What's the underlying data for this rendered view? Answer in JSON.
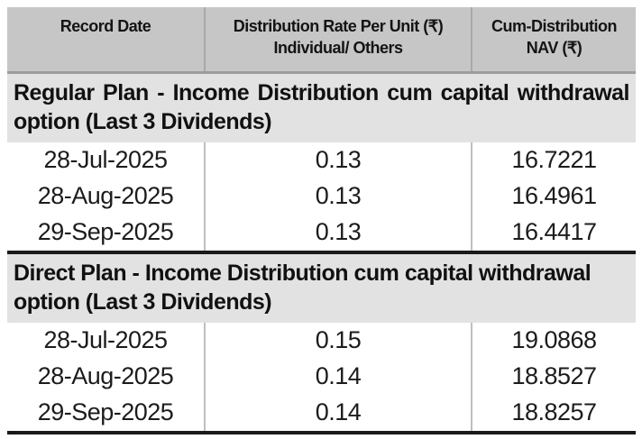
{
  "colors": {
    "header_bg": "#c6c6c6",
    "section_bg": "#e2e2e2",
    "heavy_rule": "#1a1a1a",
    "header_rule": "#9d9d9d",
    "column_divider": "#bfbfbf",
    "text": "#141414",
    "page_bg": "#ffffff"
  },
  "table": {
    "columns": [
      {
        "label": "Record Date"
      },
      {
        "label": "Distribution Rate Per Unit (₹)",
        "sublabel": "Individual/ Others"
      },
      {
        "label": "Cum-Distribution NAV (₹)"
      }
    ],
    "sections": [
      {
        "title": "Regular Plan - Income Distribution cum capital withdrawal option (Last 3 Dividends)",
        "rows": [
          {
            "record_date": "28-Jul-2025",
            "rate": "0.13",
            "nav": "16.7221"
          },
          {
            "record_date": "28-Aug-2025",
            "rate": "0.13",
            "nav": "16.4961"
          },
          {
            "record_date": "29-Sep-2025",
            "rate": "0.13",
            "nav": "16.4417"
          }
        ]
      },
      {
        "title": "Direct Plan - Income Distribution cum capital withdrawal option (Last 3 Dividends)",
        "rows": [
          {
            "record_date": "28-Jul-2025",
            "rate": "0.15",
            "nav": "19.0868"
          },
          {
            "record_date": "28-Aug-2025",
            "rate": "0.14",
            "nav": "18.8527"
          },
          {
            "record_date": "29-Sep-2025",
            "rate": "0.14",
            "nav": "18.8257"
          }
        ]
      }
    ]
  },
  "chart_data": {
    "type": "table",
    "title": "",
    "columns": [
      "Record Date",
      "Distribution Rate Per Unit (₹) Individual/ Others",
      "Cum-Distribution NAV (₹)"
    ],
    "groups": [
      {
        "group": "Regular Plan - Income Distribution cum capital withdrawal option (Last 3 Dividends)",
        "rows": [
          [
            "28-Jul-2025",
            0.13,
            16.7221
          ],
          [
            "28-Aug-2025",
            0.13,
            16.4961
          ],
          [
            "29-Sep-2025",
            0.13,
            16.4417
          ]
        ]
      },
      {
        "group": "Direct Plan - Income Distribution cum capital withdrawal option (Last 3 Dividends)",
        "rows": [
          [
            "28-Jul-2025",
            0.15,
            19.0868
          ],
          [
            "28-Aug-2025",
            0.14,
            18.8527
          ],
          [
            "29-Sep-2025",
            0.14,
            18.8257
          ]
        ]
      }
    ]
  }
}
